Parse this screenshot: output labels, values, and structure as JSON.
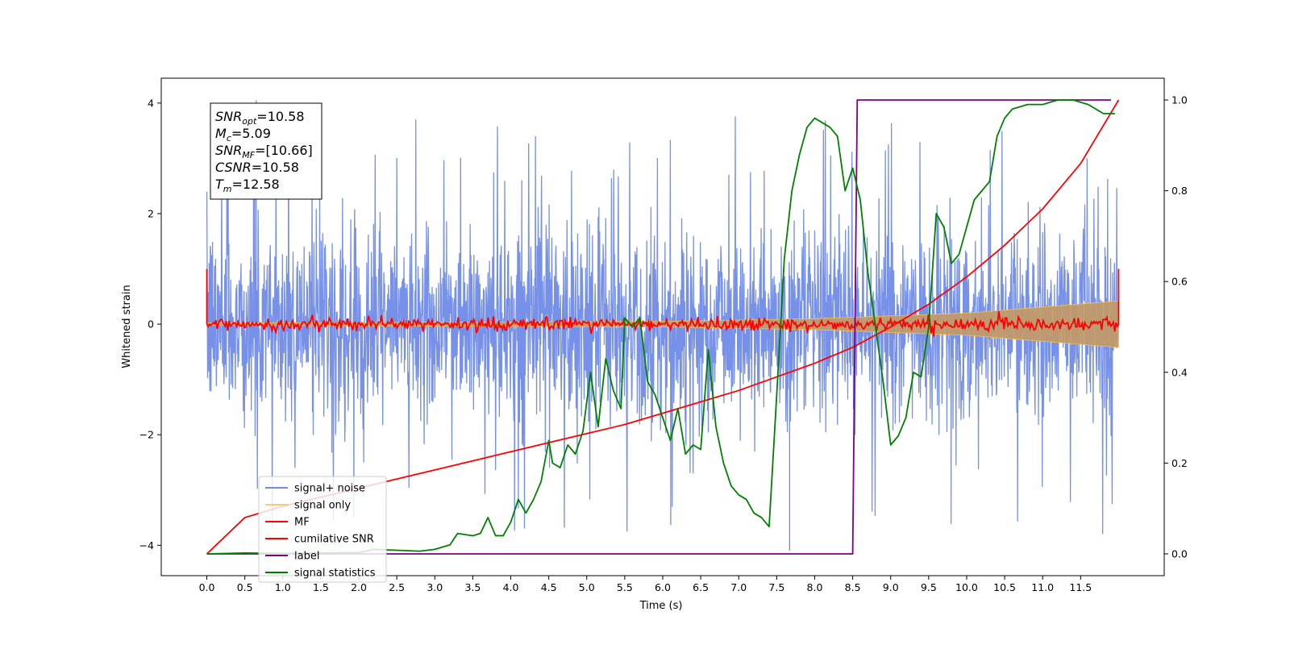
{
  "chart_data": {
    "type": "line",
    "xlabel": "Time (s)",
    "ylabel": "Whitened strain",
    "xlim": [
      -0.6,
      12.6
    ],
    "ylim": [
      -4.55,
      4.45
    ],
    "y2lim": [
      -0.048,
      1.048
    ],
    "x_ticks": [
      "0.0",
      "0.5",
      "1.0",
      "1.5",
      "2.0",
      "2.5",
      "3.0",
      "3.5",
      "4.0",
      "4.5",
      "5.0",
      "5.5",
      "6.0",
      "6.5",
      "7.0",
      "7.5",
      "8.0",
      "8.5",
      "9.0",
      "9.5",
      "10.0",
      "10.5",
      "11.0",
      "11.5"
    ],
    "y_ticks": [
      "4",
      "2",
      "0",
      "−2",
      "−4"
    ],
    "y2_ticks": [
      "1.0",
      "0.8",
      "0.6",
      "0.4",
      "0.2",
      "0.0"
    ],
    "legend": {
      "location": "lower-left",
      "entries": [
        "signal+ noise",
        "signal only",
        "MF",
        "cumilative SNR",
        "label",
        "signal statistics"
      ]
    },
    "series": [
      {
        "name": "signal+ noise",
        "color": "#6f8be6",
        "axis": "left",
        "description_kind": "noise band",
        "typical_range": [
          -2.0,
          2.0
        ],
        "extremes": [
          -4.1,
          4.05
        ]
      },
      {
        "name": "signal only",
        "color": "#f6c04f",
        "axis": "left",
        "envelope": {
          "x": [
            0.0,
            6.0,
            8.0,
            10.0,
            12.0
          ],
          "amplitude": [
            0.02,
            0.05,
            0.1,
            0.2,
            0.42
          ]
        }
      },
      {
        "name": "MF",
        "color": "#ff0000",
        "axis": "left",
        "typical_range": [
          -0.15,
          0.15
        ]
      },
      {
        "name": "cumilative SNR",
        "color": "#ff0000",
        "axis": "right",
        "x": [
          0.0,
          0.5,
          1.0,
          1.5,
          2.0,
          2.5,
          3.0,
          3.5,
          4.0,
          4.5,
          5.0,
          5.5,
          6.0,
          6.5,
          7.0,
          7.5,
          8.0,
          8.5,
          9.0,
          9.5,
          10.0,
          10.5,
          11.0,
          11.5,
          12.0
        ],
        "values": [
          0.0,
          0.08,
          0.105,
          0.125,
          0.145,
          0.165,
          0.185,
          0.205,
          0.225,
          0.245,
          0.265,
          0.285,
          0.31,
          0.335,
          0.36,
          0.39,
          0.42,
          0.455,
          0.5,
          0.55,
          0.61,
          0.68,
          0.76,
          0.86,
          1.0
        ]
      },
      {
        "name": "label",
        "color": "#800080",
        "axis": "right",
        "x": [
          0.0,
          8.5,
          8.56,
          11.9
        ],
        "values": [
          0.0,
          0.0,
          1.0,
          1.0
        ]
      },
      {
        "name": "signal statistics",
        "color": "#008000",
        "axis": "right",
        "x": [
          0.0,
          0.5,
          1.0,
          1.5,
          2.0,
          2.2,
          2.5,
          2.8,
          3.0,
          3.2,
          3.3,
          3.5,
          3.6,
          3.7,
          3.8,
          3.9,
          4.0,
          4.1,
          4.2,
          4.3,
          4.4,
          4.5,
          4.55,
          4.65,
          4.75,
          4.85,
          4.95,
          5.05,
          5.15,
          5.25,
          5.35,
          5.45,
          5.5,
          5.6,
          5.7,
          5.8,
          5.9,
          6.0,
          6.1,
          6.2,
          6.3,
          6.4,
          6.5,
          6.6,
          6.7,
          6.8,
          6.9,
          7.0,
          7.1,
          7.2,
          7.3,
          7.4,
          7.5,
          7.6,
          7.7,
          7.8,
          7.9,
          8.0,
          8.1,
          8.2,
          8.3,
          8.4,
          8.5,
          8.6,
          8.7,
          8.8,
          8.9,
          9.0,
          9.1,
          9.2,
          9.3,
          9.4,
          9.5,
          9.6,
          9.7,
          9.8,
          9.9,
          10.0,
          10.1,
          10.2,
          10.3,
          10.4,
          10.5,
          10.6,
          10.8,
          11.0,
          11.2,
          11.4,
          11.6,
          11.8,
          11.95
        ],
        "values": [
          0.0,
          0.002,
          0.001,
          0.002,
          0.003,
          0.01,
          0.008,
          0.006,
          0.01,
          0.02,
          0.045,
          0.04,
          0.045,
          0.08,
          0.04,
          0.04,
          0.07,
          0.12,
          0.09,
          0.12,
          0.16,
          0.25,
          0.2,
          0.19,
          0.24,
          0.22,
          0.27,
          0.4,
          0.28,
          0.43,
          0.36,
          0.32,
          0.52,
          0.5,
          0.52,
          0.38,
          0.35,
          0.3,
          0.25,
          0.32,
          0.22,
          0.24,
          0.23,
          0.45,
          0.28,
          0.2,
          0.15,
          0.13,
          0.12,
          0.09,
          0.08,
          0.06,
          0.35,
          0.65,
          0.8,
          0.88,
          0.94,
          0.96,
          0.95,
          0.94,
          0.92,
          0.8,
          0.85,
          0.78,
          0.62,
          0.5,
          0.38,
          0.24,
          0.26,
          0.3,
          0.4,
          0.39,
          0.5,
          0.75,
          0.72,
          0.64,
          0.66,
          0.72,
          0.78,
          0.8,
          0.82,
          0.92,
          0.96,
          0.98,
          0.99,
          0.99,
          1.0,
          1.0,
          0.99,
          0.97,
          0.97
        ]
      }
    ],
    "annotation": {
      "lines": [
        {
          "main": "SNR",
          "sub": "opt",
          "rest": "=10.58"
        },
        {
          "main": "M",
          "sub": "c",
          "rest": "=5.09"
        },
        {
          "main": "SNR",
          "sub": "MF",
          "rest": "=[10.66]"
        },
        {
          "main": "CSNR",
          "sub": "",
          "rest": "=10.58"
        },
        {
          "main": "T",
          "sub": "m",
          "rest": "=12.58"
        }
      ]
    }
  }
}
